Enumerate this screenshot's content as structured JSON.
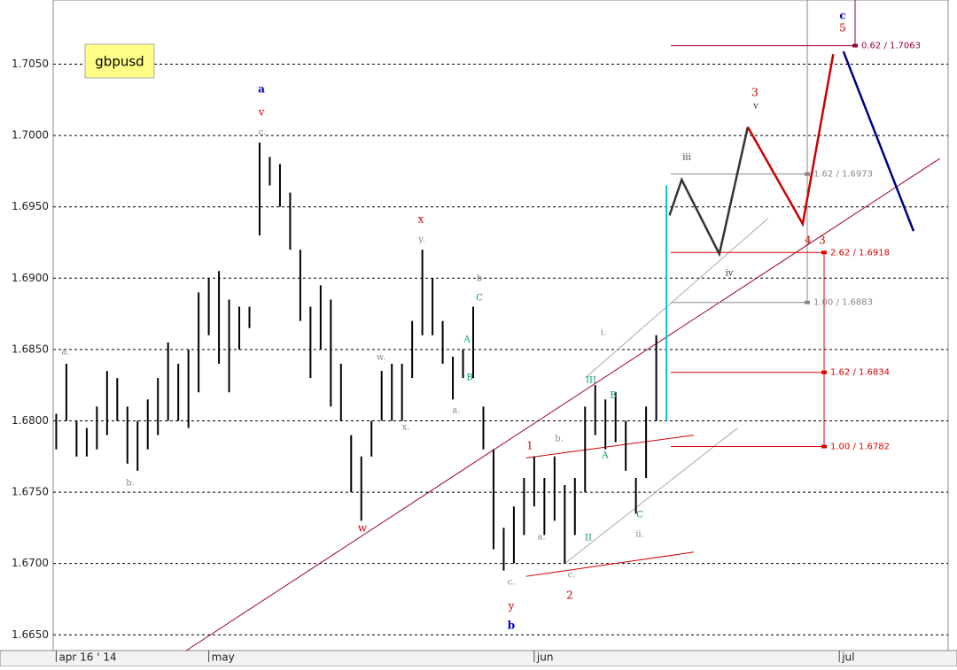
{
  "chart_data": {
    "type": "ohlc",
    "symbol": "gbpusd",
    "xlim": [
      -0.3,
      87.7
    ],
    "ylim": [
      1.6639,
      1.7095
    ],
    "xticks": [
      {
        "value": 0,
        "label": "apr 16 ' 14"
      },
      {
        "value": 15,
        "label": "may"
      },
      {
        "value": 47,
        "label": "jun"
      },
      {
        "value": 77,
        "label": "jul"
      }
    ],
    "yticks": [
      {
        "value": 1.665,
        "label": "1.6650"
      },
      {
        "value": 1.67,
        "label": "1.6700"
      },
      {
        "value": 1.675,
        "label": "1.6750"
      },
      {
        "value": 1.68,
        "label": "1.6800"
      },
      {
        "value": 1.685,
        "label": "1.6850"
      },
      {
        "value": 1.69,
        "label": "1.6900"
      },
      {
        "value": 1.695,
        "label": "1.6950"
      },
      {
        "value": 1.7,
        "label": "1.7000"
      },
      {
        "value": 1.705,
        "label": "1.7050"
      }
    ],
    "grid": true,
    "series": [
      {
        "color": "#000000",
        "x": [
          0,
          1,
          2,
          3,
          4,
          5,
          6,
          7,
          8,
          9,
          10,
          11,
          12,
          13,
          14,
          15,
          16,
          17,
          18,
          19,
          20,
          21,
          22,
          23,
          24,
          25,
          26,
          27,
          28,
          29,
          30,
          31,
          32,
          33,
          34,
          35,
          36,
          37,
          38,
          39,
          40,
          41,
          42,
          43,
          44,
          45,
          46,
          47,
          48,
          49,
          50,
          51,
          52,
          53,
          54,
          55,
          56,
          57,
          58,
          59
        ],
        "high": [
          1.6805,
          1.684,
          1.68,
          1.6795,
          1.681,
          1.6835,
          1.683,
          1.681,
          1.68,
          1.6815,
          1.683,
          1.6855,
          1.684,
          1.685,
          1.689,
          1.69,
          1.6905,
          1.6885,
          1.688,
          1.688,
          1.6995,
          1.6985,
          1.698,
          1.696,
          1.692,
          1.688,
          1.6895,
          1.6885,
          1.684,
          1.679,
          1.6775,
          1.68,
          1.6835,
          1.684,
          1.684,
          1.687,
          1.692,
          1.69,
          1.687,
          1.6845,
          1.685,
          1.688,
          1.681,
          1.678,
          1.6725,
          1.674,
          1.676,
          1.6775,
          1.676,
          1.6775,
          1.6755,
          1.676,
          1.681,
          1.6825,
          1.6815,
          1.682,
          1.68,
          1.676,
          1.681,
          1.686
        ],
        "low": [
          1.678,
          1.68,
          1.6775,
          1.6775,
          1.678,
          1.679,
          1.68,
          1.677,
          1.6765,
          1.678,
          1.679,
          1.68,
          1.68,
          1.6795,
          1.682,
          1.686,
          1.684,
          1.682,
          1.685,
          1.6865,
          1.693,
          1.6965,
          1.695,
          1.692,
          1.687,
          1.683,
          1.685,
          1.681,
          1.68,
          1.675,
          1.673,
          1.6775,
          1.68,
          1.68,
          1.68,
          1.683,
          1.686,
          1.686,
          1.684,
          1.6815,
          1.683,
          1.683,
          1.678,
          1.671,
          1.6695,
          1.67,
          1.672,
          1.674,
          1.672,
          1.673,
          1.67,
          1.672,
          1.675,
          1.679,
          1.678,
          1.6785,
          1.6765,
          1.6735,
          1.676,
          1.68
        ]
      },
      {
        "color": "#00cccc",
        "x": [
          60
        ],
        "high": [
          1.6965
        ],
        "low": [
          1.68
        ]
      }
    ],
    "projections": [
      {
        "color": "#333333",
        "x": [
          60.3,
          61.5,
          65.2,
          68.0
        ],
        "y": [
          1.6944,
          1.6969,
          1.6917,
          1.7006
        ]
      },
      {
        "color": "#cc0000",
        "x": [
          68.0,
          73.4,
          76.4
        ],
        "y": [
          1.7006,
          1.6938,
          1.7057
        ]
      },
      {
        "color": "#000080",
        "x": [
          77.4,
          84.3
        ],
        "y": [
          1.7059,
          1.6933
        ]
      }
    ],
    "trendlines": [
      {
        "color": "#990033",
        "x": [
          12.8,
          86.9
        ],
        "y": [
          1.6639,
          1.6984
        ]
      },
      {
        "color": "#cc0000",
        "x": [
          46.2,
          62.7
        ],
        "y": [
          1.6691,
          1.6708
        ]
      },
      {
        "color": "#cc0000",
        "x": [
          46.2,
          62.7
        ],
        "y": [
          1.6774,
          1.679
        ]
      },
      {
        "color": "#aaaaaa",
        "x": [
          50.0,
          67.0
        ],
        "y": [
          1.67,
          1.6795
        ]
      },
      {
        "color": "#aaaaaa",
        "x": [
          52.0,
          70.0
        ],
        "y": [
          1.683,
          1.6942
        ]
      }
    ],
    "fibs": [
      {
        "color": "#990033",
        "level": {
          "value": 1.7063,
          "label": "0.62 / 1.7063"
        }
      },
      {
        "color": "#888888",
        "level": {
          "value": 1.6973,
          "label": "1.62 / 1.6973"
        }
      },
      {
        "color": "#dd0000",
        "level": {
          "value": 1.6918,
          "label": "2.62 / 1.6918"
        }
      },
      {
        "color": "#888888",
        "level": {
          "value": 1.6883,
          "label": "1.00 / 1.6883"
        }
      },
      {
        "color": "#dd0000",
        "level": {
          "value": 1.6834,
          "label": "1.62 / 1.6834"
        }
      },
      {
        "color": "#dd0000",
        "level": {
          "value": 1.6782,
          "label": "1.00 / 1.6782"
        }
      }
    ],
    "annotations": [
      {
        "text": "a",
        "color": "#0000cc"
      },
      {
        "text": "v",
        "color": "#cc0000"
      },
      {
        "text": "c.",
        "color": "#888888"
      },
      {
        "text": "a.",
        "color": "#888888"
      },
      {
        "text": "b.",
        "color": "#888888"
      },
      {
        "text": "w",
        "color": "#cc0000"
      },
      {
        "text": "x",
        "color": "#cc0000"
      },
      {
        "text": "y.",
        "color": "#888888"
      },
      {
        "text": "w.",
        "color": "#888888"
      },
      {
        "text": "x.",
        "color": "#888888"
      },
      {
        "text": "a.",
        "color": "#888888"
      },
      {
        "text": "b",
        "color": "#888888"
      },
      {
        "text": "C",
        "color": "#009966"
      },
      {
        "text": "A",
        "color": "#009966"
      },
      {
        "text": "B",
        "color": "#009966"
      },
      {
        "text": "1",
        "color": "#cc0000"
      },
      {
        "text": "b.",
        "color": "#888888"
      },
      {
        "text": "a.",
        "color": "#888888"
      },
      {
        "text": "c.",
        "color": "#888888"
      },
      {
        "text": "c.",
        "color": "#888888"
      },
      {
        "text": "y",
        "color": "#cc0000"
      },
      {
        "text": "b",
        "color": "#0000cc"
      },
      {
        "text": "2",
        "color": "#cc0000"
      },
      {
        "text": "i.",
        "color": "#888888"
      },
      {
        "text": "III",
        "color": "#009966"
      },
      {
        "text": "II",
        "color": "#009966"
      },
      {
        "text": "A",
        "color": "#009966"
      },
      {
        "text": "B",
        "color": "#009966"
      },
      {
        "text": "C",
        "color": "#009966"
      },
      {
        "text": "ii.",
        "color": "#888888"
      },
      {
        "text": "iii",
        "color": "#333333"
      },
      {
        "text": "iv",
        "color": "#333333"
      },
      {
        "text": "3",
        "color": "#cc0000"
      },
      {
        "text": "v",
        "color": "#333333"
      },
      {
        "text": "4",
        "color": "#cc0000"
      },
      {
        "text": "3",
        "color": "#cc0000"
      },
      {
        "text": "c",
        "color": "#0000cc"
      },
      {
        "text": "5",
        "color": "#cc0000"
      }
    ]
  }
}
